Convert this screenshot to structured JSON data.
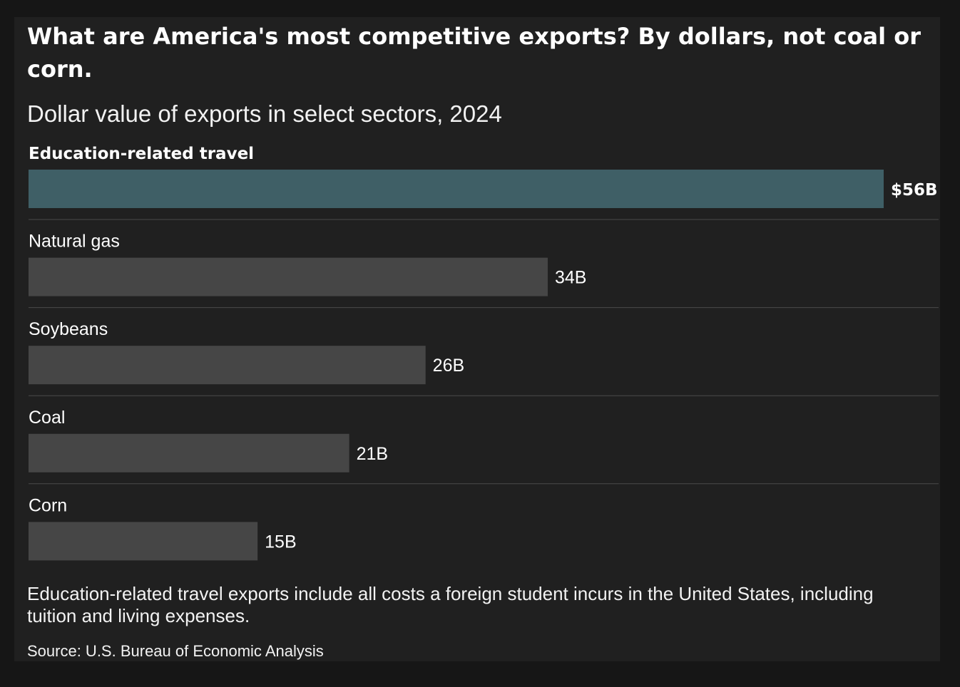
{
  "chart_data": {
    "type": "bar",
    "orientation": "horizontal",
    "title": "What are America's most competitive exports? By dollars, not coal or corn.",
    "subtitle": "Dollar value of exports in select sectors, 2024",
    "categories": [
      "Education-related travel",
      "Natural gas",
      "Soybeans",
      "Coal",
      "Corn"
    ],
    "values": [
      56,
      34,
      26,
      21,
      15
    ],
    "value_labels": [
      "$56B",
      "34B",
      "26B",
      "21B",
      "15B"
    ],
    "unit": "billion US dollars",
    "xlim": [
      0,
      56
    ],
    "highlight_category": "Education-related travel",
    "grid": false,
    "legend": "none",
    "colors": {
      "highlight": "#3f5f66",
      "default": "#464646",
      "background": "#202020",
      "page_background": "#161616",
      "separator": "#4a4a4a",
      "text": "#ffffff"
    },
    "note": "Education-related travel exports include all costs a foreign student incurs in the United States, including tuition and living expenses.",
    "source": "Source: U.S. Bureau of Economic Analysis"
  }
}
